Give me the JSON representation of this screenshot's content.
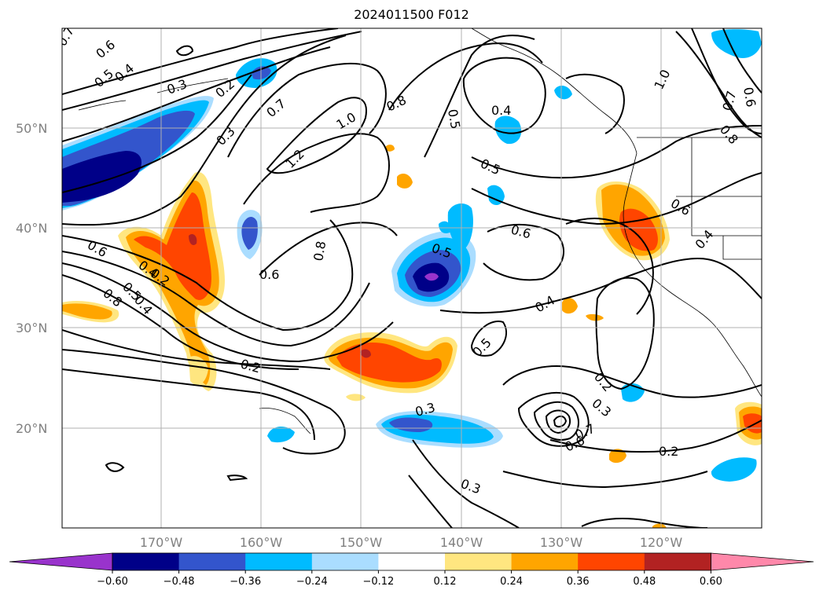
{
  "title": "2024011500 F012",
  "lat_labels": [
    "50°N",
    "40°N",
    "30°N",
    "20°N"
  ],
  "lon_labels": [
    "170°W",
    "160°W",
    "150°W",
    "140°W",
    "130°W",
    "120°W"
  ],
  "colorbar": {
    "colors": [
      "#9933cc",
      "#000088",
      "#3355cc",
      "#00bbff",
      "#aaddff",
      "#ffffff",
      "#ffe680",
      "#ffa500",
      "#ff4500",
      "#b22222",
      "#ff88aa"
    ],
    "tick_labels": [
      "−0.60",
      "−0.48",
      "−0.36",
      "−0.24",
      "−0.12",
      "0.12",
      "0.24",
      "0.36",
      "0.48",
      "0.60"
    ]
  },
  "contour_labels": [
    "0.7",
    "0.6",
    "0.5",
    "0.4",
    "0.3",
    "0.2",
    "0.3",
    "0.7",
    "1.2",
    "1.0",
    "0.8",
    "0.5",
    "0.4",
    "0.5",
    "0.6",
    "0.8",
    "0.6",
    "0.5",
    "0.6",
    "0.4",
    "0.2",
    "0.8",
    "0.4",
    "0.5",
    "0.2",
    "0.3",
    "0.4",
    "0.5",
    "0.7",
    "0.6",
    "0.3",
    "0.2",
    "0.3",
    "0.2",
    "0.6",
    "0.4",
    "1.0",
    "0.7",
    "0.6",
    "0.8"
  ]
}
